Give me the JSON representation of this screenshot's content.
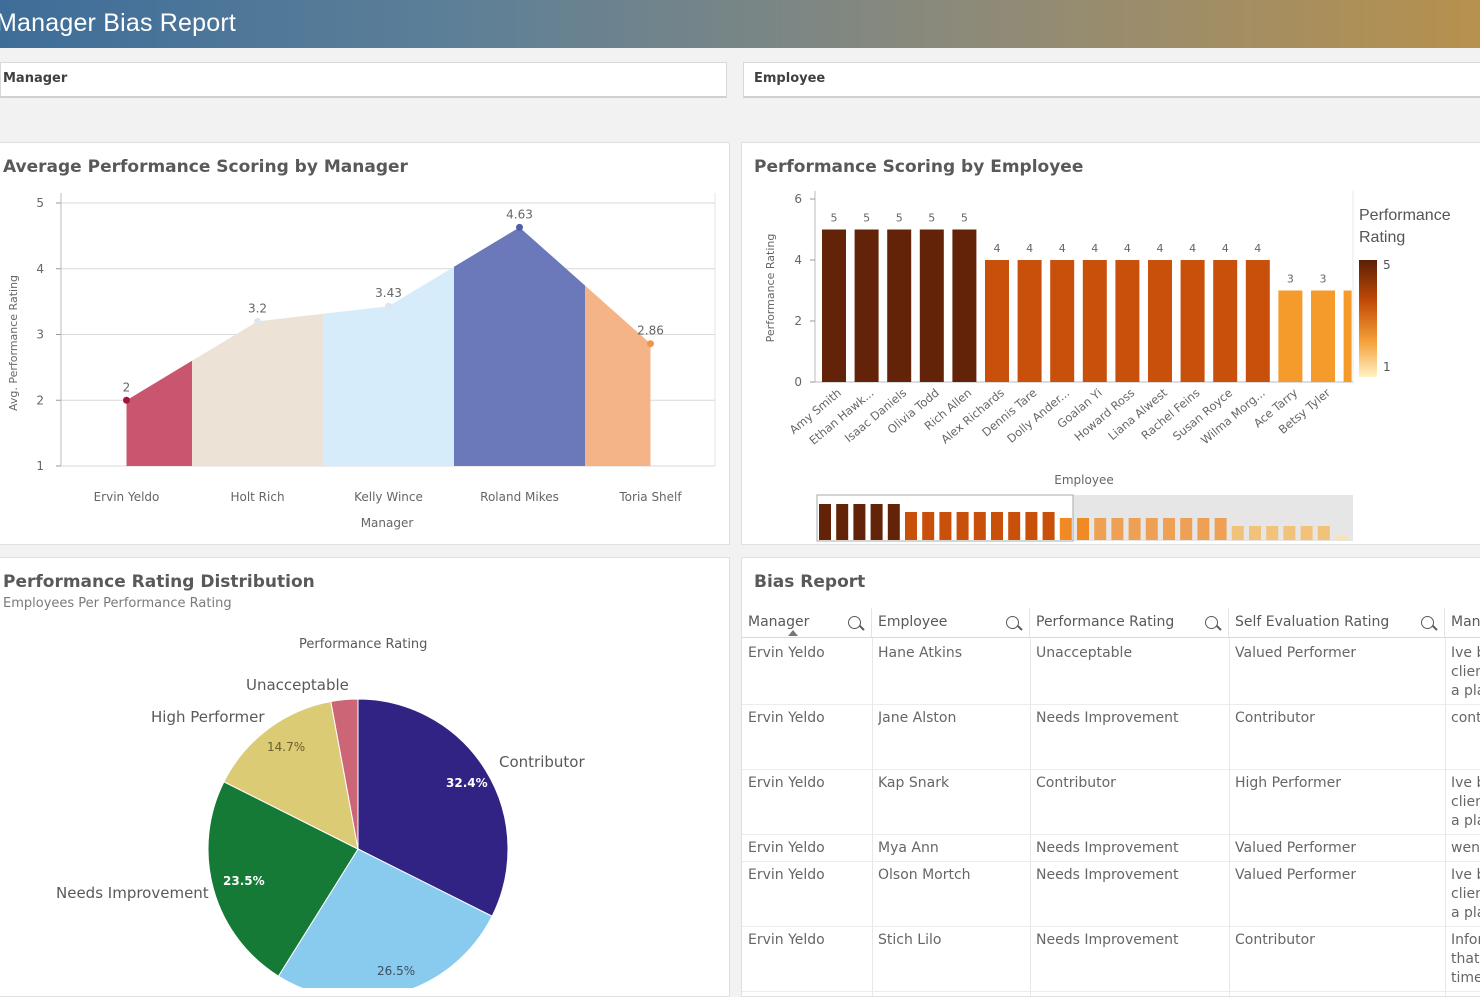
{
  "header": {
    "title": "Manager Bias Report"
  },
  "filters": {
    "manager": "Manager",
    "employee": "Employee"
  },
  "avg_chart": {
    "title": "Average Performance Scoring by Manager",
    "ylabel": "Avg. Performance Rating",
    "xlabel": "Manager",
    "y_ticks": [
      "5",
      "4",
      "3",
      "2",
      "1"
    ],
    "categories": [
      "Ervin Yeldo",
      "Holt Rich",
      "Kelly Wince",
      "Roland Mikes",
      "Toria Shelf"
    ],
    "labels": [
      "2",
      "3.2",
      "3.43",
      "4.63",
      "2.86"
    ]
  },
  "emp_chart": {
    "title": "Performance Scoring by Employee",
    "ylabel": "Performance Rating",
    "xlabel": "Employee",
    "y_ticks": [
      "6",
      "4",
      "2",
      "0"
    ],
    "legend_title_1": "Performance",
    "legend_title_2": "Rating",
    "legend_max": "5",
    "legend_min": "1",
    "employees": [
      "Amy Smith",
      "Ethan Hawk...",
      "Isaac Daniels",
      "Olivia Todd",
      "Rich Allen",
      "Alex Richards",
      "Dennis Tare",
      "Dolly Ander...",
      "Goalan Yi",
      "Howard Ross",
      "Liana Alwest",
      "Rachel Feins",
      "Susan Royce",
      "Wilma Morg...",
      "Ace Tarry",
      "Betsy Tyler"
    ],
    "value_labels": [
      "5",
      "5",
      "5",
      "5",
      "5",
      "4",
      "4",
      "4",
      "4",
      "4",
      "4",
      "4",
      "4",
      "4",
      "3",
      "3"
    ]
  },
  "pie_chart": {
    "title": "Performance Rating Distribution",
    "subtitle": "Employees Per Performance Rating",
    "legend_title": "Performance Rating",
    "labels": {
      "unacceptable": "Unacceptable",
      "high": "High Performer",
      "contributor": "Contributor",
      "needs": "Needs Improvement"
    },
    "pct": {
      "contributor": "32.4%",
      "valued": "26.5%",
      "needs": "23.5%",
      "high": "14.7%"
    }
  },
  "bias": {
    "title": "Bias Report",
    "columns": [
      "Manager",
      "Employee",
      "Performance Rating",
      "Self Evaluation Rating",
      "Man"
    ],
    "rows": [
      {
        "manager": "Ervin Yeldo",
        "employee": "Hane Atkins",
        "rating": "Unacceptable",
        "self": "Valued Performer",
        "c1": "Ive b",
        "c2": "clien",
        "c3": "a pla"
      },
      {
        "manager": "Ervin Yeldo",
        "employee": "Jane Alston",
        "rating": "Needs Improvement",
        "self": "Contributor",
        "c1": "cont",
        "c2": "",
        "c3": ""
      },
      {
        "manager": "Ervin Yeldo",
        "employee": "Kap Snark",
        "rating": "Contributor",
        "self": "High Performer",
        "c1": "Ive b",
        "c2": "clien",
        "c3": "a pla"
      },
      {
        "manager": "Ervin Yeldo",
        "employee": "Mya Ann",
        "rating": "Needs Improvement",
        "self": "Valued Performer",
        "c1": "went",
        "c2": "",
        "c3": ""
      },
      {
        "manager": "Ervin Yeldo",
        "employee": "Olson Mortch",
        "rating": "Needs Improvement",
        "self": "Valued Performer",
        "c1": "Ive b",
        "c2": "clien",
        "c3": "a pla"
      },
      {
        "manager": "Ervin Yeldo",
        "employee": "Stich Lilo",
        "rating": "Needs Improvement",
        "self": "Contributor",
        "c1": "Infor",
        "c2": "that",
        "c3": "time"
      }
    ]
  },
  "chart_data": [
    {
      "type": "area",
      "title": "Average Performance Scoring by Manager",
      "xlabel": "Manager",
      "ylabel": "Avg. Performance Rating",
      "categories": [
        "Ervin Yeldo",
        "Holt Rich",
        "Kelly Wince",
        "Roland Mikes",
        "Toria Shelf"
      ],
      "values": [
        2,
        3.2,
        3.43,
        4.63,
        2.86
      ],
      "ylim": [
        1,
        5
      ],
      "colors": [
        "#c9566e",
        "#ece3d6",
        "#d7ecfb",
        "#6b78b9",
        "#f5b488"
      ]
    },
    {
      "type": "bar",
      "title": "Performance Scoring by Employee",
      "xlabel": "Employee",
      "ylabel": "Performance Rating",
      "categories": [
        "Amy Smith",
        "Ethan Hawk...",
        "Isaac Daniels",
        "Olivia Todd",
        "Rich Allen",
        "Alex Richards",
        "Dennis Tare",
        "Dolly Ander...",
        "Goalan Yi",
        "Howard Ross",
        "Liana Alwest",
        "Rachel Feins",
        "Susan Royce",
        "Wilma Morg...",
        "Ace Tarry",
        "Betsy Tyler"
      ],
      "values": [
        5,
        5,
        5,
        5,
        5,
        4,
        4,
        4,
        4,
        4,
        4,
        4,
        4,
        4,
        3,
        3
      ],
      "ylim": [
        0,
        6
      ]
    },
    {
      "type": "pie",
      "title": "Performance Rating Distribution",
      "categories": [
        "Contributor",
        "Valued Performer",
        "Needs Improvement",
        "High Performer",
        "Unacceptable"
      ],
      "values": [
        32.4,
        26.5,
        23.5,
        14.7,
        2.9
      ],
      "colors": [
        "#302383",
        "#88cbee",
        "#147a35",
        "#dbcb75",
        "#cc6677"
      ]
    }
  ]
}
